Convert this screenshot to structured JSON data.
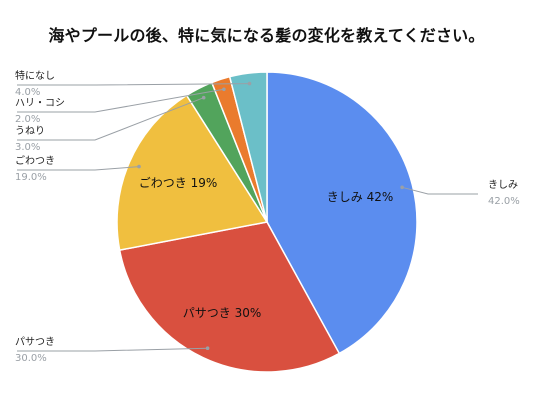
{
  "chart_data": {
    "type": "pie",
    "title": "海やプールの後、特に気になる髪の変化を教えてください。",
    "slices": [
      {
        "label": "きしみ",
        "value": 42.0,
        "pct_text": "42.0%",
        "inner_text": "きしみ 42%",
        "color": "#5b8def"
      },
      {
        "label": "パサつき",
        "value": 30.0,
        "pct_text": "30.0%",
        "inner_text": "パサつき 30%",
        "color": "#d9503f"
      },
      {
        "label": "ごわつき",
        "value": 19.0,
        "pct_text": "19.0%",
        "inner_text": "ごわつき 19%",
        "color": "#f0bf3f"
      },
      {
        "label": "うねり",
        "value": 3.0,
        "pct_text": "3.0%",
        "inner_text": "",
        "color": "#52a45c"
      },
      {
        "label": "ハリ・コシ",
        "value": 2.0,
        "pct_text": "2.0%",
        "inner_text": "",
        "color": "#ea7b2d"
      },
      {
        "label": "特になし",
        "value": 4.0,
        "pct_text": "4.0%",
        "inner_text": "",
        "color": "#6bbfc8"
      }
    ]
  }
}
